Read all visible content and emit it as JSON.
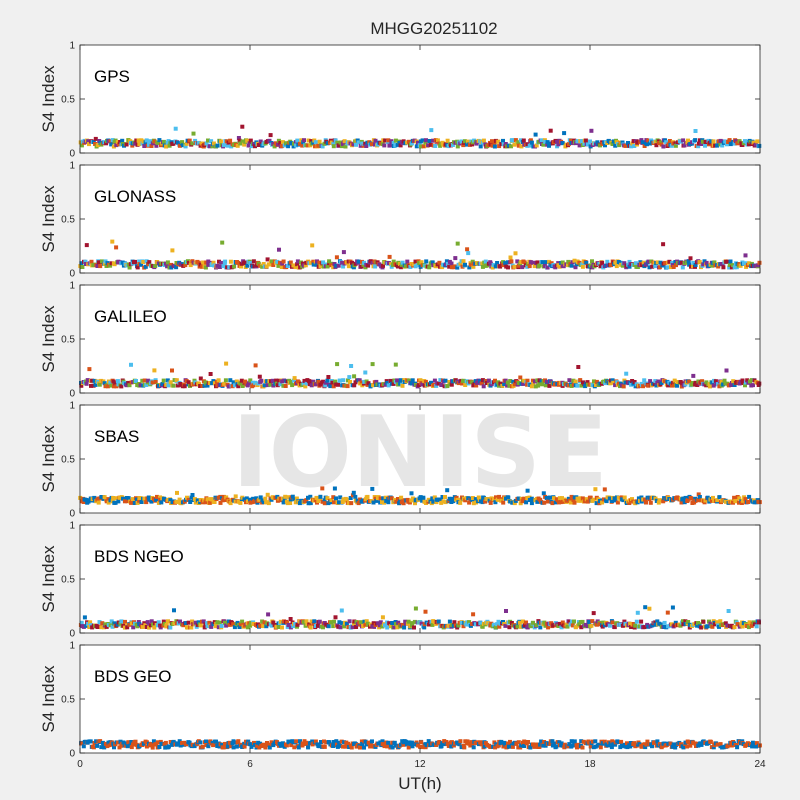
{
  "figure": {
    "title": "MHGG20251102",
    "watermark": "IONISE",
    "xlabel": "UT(h)",
    "ylabel": "S4 Index"
  },
  "chart_data": [
    {
      "type": "scatter",
      "label": "GPS",
      "xlim": [
        0,
        24
      ],
      "ylim": [
        0,
        1
      ],
      "xticks": [
        "0",
        "6",
        "12",
        "18",
        "24"
      ],
      "yticks": [
        "0",
        "0.5",
        "1"
      ],
      "grid": false,
      "baseline_s4": 0.09,
      "spike_s4": 0.25,
      "series_colors": [
        "#0072BD",
        "#D95319",
        "#EDB120",
        "#7E2F8E",
        "#77AC30",
        "#4DBEEE",
        "#A2142F"
      ]
    },
    {
      "type": "scatter",
      "label": "GLONASS",
      "xlim": [
        0,
        24
      ],
      "ylim": [
        0,
        1
      ],
      "xticks": [
        "0",
        "6",
        "12",
        "18",
        "24"
      ],
      "yticks": [
        "0",
        "0.5",
        "1"
      ],
      "grid": false,
      "baseline_s4": 0.08,
      "spike_s4": 0.3,
      "series_colors": [
        "#0072BD",
        "#D95319",
        "#EDB120",
        "#7E2F8E",
        "#77AC30",
        "#4DBEEE",
        "#A2142F"
      ]
    },
    {
      "type": "scatter",
      "label": "GALILEO",
      "xlim": [
        0,
        24
      ],
      "ylim": [
        0,
        1
      ],
      "xticks": [
        "0",
        "6",
        "12",
        "18",
        "24"
      ],
      "yticks": [
        "0",
        "0.5",
        "1"
      ],
      "grid": false,
      "baseline_s4": 0.09,
      "spike_s4": 0.28,
      "series_colors": [
        "#0072BD",
        "#D95319",
        "#EDB120",
        "#7E2F8E",
        "#77AC30",
        "#4DBEEE",
        "#A2142F"
      ]
    },
    {
      "type": "scatter",
      "label": "SBAS",
      "xlim": [
        0,
        24
      ],
      "ylim": [
        0,
        1
      ],
      "xticks": [
        "0",
        "6",
        "12",
        "18",
        "24"
      ],
      "yticks": [
        "0",
        "0.5",
        "1"
      ],
      "grid": false,
      "baseline_s4": 0.12,
      "spike_s4": 0.23,
      "series_colors": [
        "#0072BD",
        "#D95319",
        "#EDB120"
      ]
    },
    {
      "type": "scatter",
      "label": "BDS NGEO",
      "xlim": [
        0,
        24
      ],
      "ylim": [
        0,
        1
      ],
      "xticks": [
        "0",
        "6",
        "12",
        "18",
        "24"
      ],
      "yticks": [
        "0",
        "0.5",
        "1"
      ],
      "grid": false,
      "baseline_s4": 0.08,
      "spike_s4": 0.24,
      "series_colors": [
        "#0072BD",
        "#D95319",
        "#EDB120",
        "#7E2F8E",
        "#77AC30",
        "#4DBEEE",
        "#A2142F"
      ]
    },
    {
      "type": "scatter",
      "label": "BDS GEO",
      "xlim": [
        0,
        24
      ],
      "ylim": [
        0,
        1
      ],
      "xticks": [
        "0",
        "6",
        "12",
        "18",
        "24"
      ],
      "yticks": [
        "0",
        "0.5",
        "1"
      ],
      "grid": false,
      "baseline_s4": 0.08,
      "spike_s4": 0.1,
      "series_colors": [
        "#0072BD",
        "#D95319"
      ]
    }
  ]
}
